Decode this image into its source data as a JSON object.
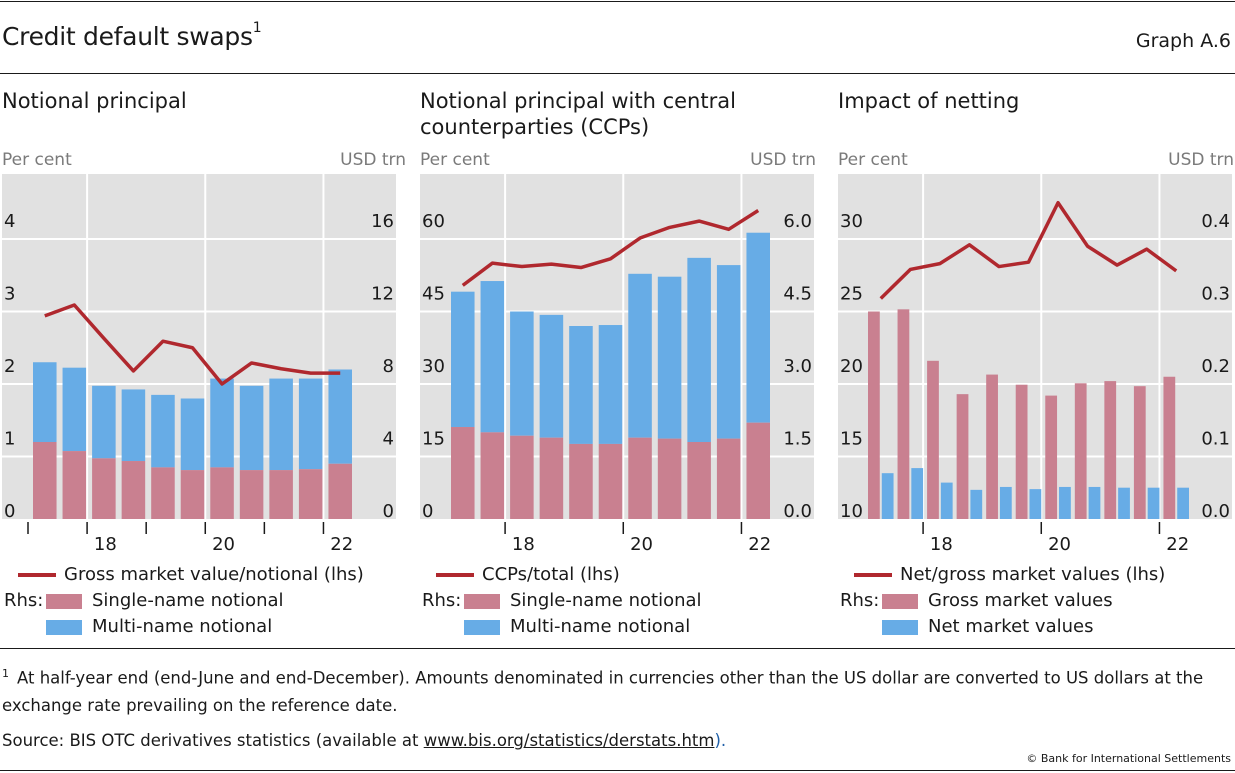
{
  "header": {
    "title": "Credit default swaps",
    "title_footnote": "1",
    "graph_number": "Graph A.6"
  },
  "colors": {
    "line": "#b0282e",
    "single_name": "#c98090",
    "multi_name": "#67ace6",
    "plot_bg": "#e1e1e1",
    "grid": "#ffffff"
  },
  "chart_data": [
    {
      "type": "bar",
      "stacked": true,
      "title": "Notional principal",
      "ylabel_left": "Per cent",
      "ylabel_right": "USD trn",
      "ylim_left": [
        0,
        4
      ],
      "yticks_left": [
        "0",
        "1",
        "2",
        "3",
        "4"
      ],
      "ylim_right": [
        0,
        16
      ],
      "yticks_right": [
        "0",
        "4",
        "8",
        "12",
        "16"
      ],
      "x": [
        "H1 2017",
        "H2 2017",
        "H1 2018",
        "H2 2018",
        "H1 2019",
        "H2 2019",
        "H1 2020",
        "H2 2020",
        "H1 2021",
        "H2 2021",
        "H1 2022"
      ],
      "xtick_labels": [
        "18",
        "20",
        "22"
      ],
      "grid": true,
      "series": [
        {
          "name": "Single-name notional",
          "axis": "right",
          "kind": "bar",
          "values": [
            4.8,
            4.3,
            3.9,
            3.75,
            3.4,
            3.25,
            3.4,
            3.25,
            3.25,
            3.3,
            3.6
          ]
        },
        {
          "name": "Multi-name notional",
          "axis": "right",
          "kind": "bar",
          "values": [
            4.4,
            4.6,
            4.0,
            3.95,
            4.0,
            3.95,
            4.9,
            4.65,
            5.05,
            5.0,
            5.2
          ]
        },
        {
          "name": "Gross market value/notional (lhs)",
          "axis": "left",
          "kind": "line",
          "values": [
            2.94,
            3.09,
            2.63,
            2.18,
            2.59,
            2.5,
            2.0,
            2.29,
            2.21,
            2.15,
            2.15
          ]
        }
      ],
      "legend": {
        "line_label": "Gross market value/notional (lhs)",
        "rhs_label": "Rhs:",
        "bar1_label": "Single-name notional",
        "bar2_label": "Multi-name notional"
      }
    },
    {
      "type": "bar",
      "stacked": true,
      "title": "Notional principal with central counterparties (CCPs)",
      "ylabel_left": "Per cent",
      "ylabel_right": "USD trn",
      "ylim_left": [
        0,
        60
      ],
      "yticks_left": [
        "0",
        "15",
        "30",
        "45",
        "60"
      ],
      "ylim_right": [
        0,
        6
      ],
      "yticks_right": [
        "0.0",
        "1.5",
        "3.0",
        "4.5",
        "6.0"
      ],
      "x": [
        "H1 2017",
        "H2 2017",
        "H1 2018",
        "H2 2018",
        "H1 2019",
        "H2 2019",
        "H1 2020",
        "H2 2020",
        "H1 2021",
        "H2 2021",
        "H1 2022"
      ],
      "xtick_labels": [
        "18",
        "20",
        "22"
      ],
      "grid": true,
      "series": [
        {
          "name": "Single-name notional",
          "axis": "right",
          "kind": "bar",
          "values": [
            2.11,
            2.0,
            1.93,
            1.89,
            1.76,
            1.76,
            1.89,
            1.87,
            1.8,
            1.87,
            2.2
          ]
        },
        {
          "name": "Multi-name notional",
          "axis": "right",
          "kind": "bar",
          "values": [
            2.8,
            3.13,
            2.57,
            2.54,
            2.44,
            2.46,
            3.39,
            3.35,
            3.81,
            3.59,
            3.93
          ]
        },
        {
          "name": "CCPs/total (lhs)",
          "axis": "left",
          "kind": "line",
          "values": [
            50.4,
            55.0,
            54.3,
            54.8,
            54.1,
            55.9,
            60.2,
            62.4,
            63.7,
            62.0,
            65.9
          ]
        }
      ],
      "legend": {
        "line_label": "CCPs/total (lhs)",
        "rhs_label": "Rhs:",
        "bar1_label": "Single-name notional",
        "bar2_label": "Multi-name notional"
      }
    },
    {
      "type": "bar",
      "stacked": false,
      "title": "Impact of netting",
      "ylabel_left": "Per cent",
      "ylabel_right": "USD trn",
      "ylim_left": [
        10,
        30
      ],
      "yticks_left": [
        "10",
        "15",
        "20",
        "25",
        "30"
      ],
      "ylim_right": [
        0,
        0.4
      ],
      "yticks_right": [
        "0.0",
        "0.1",
        "0.2",
        "0.3",
        "0.4"
      ],
      "x": [
        "H1 2017",
        "H2 2017",
        "H1 2018",
        "H2 2018",
        "H1 2019",
        "H2 2019",
        "H1 2020",
        "H2 2020",
        "H1 2021",
        "H2 2021",
        "H1 2022"
      ],
      "xtick_labels": [
        "18",
        "20",
        "22"
      ],
      "grid": true,
      "series": [
        {
          "name": "Gross market values",
          "axis": "right",
          "kind": "bar",
          "values": [
            0.3,
            0.303,
            0.232,
            0.186,
            0.213,
            0.199,
            0.184,
            0.201,
            0.204,
            0.197,
            0.21
          ]
        },
        {
          "name": "Net market values",
          "axis": "right",
          "kind": "bar",
          "values": [
            0.077,
            0.084,
            0.064,
            0.054,
            0.058,
            0.055,
            0.058,
            0.058,
            0.057,
            0.057,
            0.057
          ]
        },
        {
          "name": "Net/gross market values (lhs)",
          "axis": "left",
          "kind": "line",
          "values": [
            25.9,
            27.9,
            28.3,
            29.6,
            28.1,
            28.4,
            32.5,
            29.5,
            28.2,
            29.3,
            27.8
          ]
        }
      ],
      "legend": {
        "line_label": "Net/gross market values (lhs)",
        "rhs_label": "Rhs:",
        "bar1_label": "Gross market values",
        "bar2_label": "Net market values"
      }
    }
  ],
  "footer": {
    "footnote_marker": "1",
    "footnote_text": "At half-year end (end-June and end-December). Amounts denominated in currencies other than the US dollar are converted to US dollars at the exchange rate prevailing on the reference date.",
    "source_prefix": "Source: BIS OTC derivatives statistics (available at ",
    "source_link": "www.bis.org/statistics/derstats.htm",
    "source_suffix": ").",
    "copyright": "© Bank for International Settlements"
  }
}
